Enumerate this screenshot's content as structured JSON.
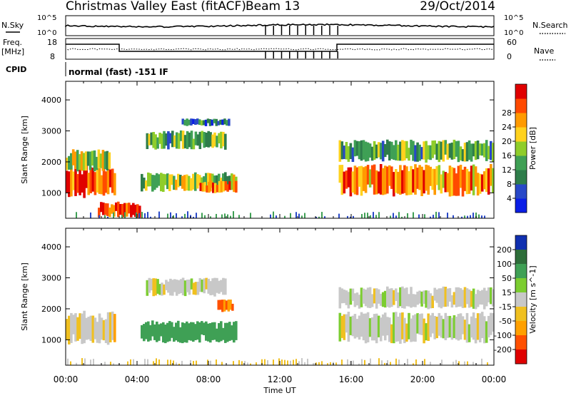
{
  "header": {
    "title": "Christmas Valley East (fitACF)",
    "beam": "Beam 13",
    "date": "29/Oct/2014"
  },
  "noise_panel": {
    "left_label": "N.Sky",
    "right_label": "N.Search",
    "tick_top": "10^5",
    "tick_bottom": "10^0",
    "right_tick_top": "10^5",
    "right_tick_bottom": "10^0"
  },
  "freq_panel": {
    "left_label_line1": "Freq.",
    "left_label_line2": "[MHz]",
    "right_label": "Nave",
    "left_ticks": [
      "18",
      "8"
    ],
    "right_ticks": [
      "60",
      "0"
    ]
  },
  "cpid": {
    "label": "CPID",
    "value": "normal (fast) -151 IF"
  },
  "chart_data": [
    {
      "type": "heatmap",
      "name": "power",
      "ylabel": "Slant Range [km]",
      "ylim": [
        180,
        4600
      ],
      "yticks": [
        "1000",
        "2000",
        "3000",
        "4000"
      ],
      "xlim_hours": [
        0,
        24
      ],
      "colorbar": {
        "label": "Power [dB]",
        "ticks": [
          "4",
          "8",
          "12",
          "16",
          "20",
          "24",
          "28"
        ],
        "colors": [
          "#0a1ee6",
          "#2848c8",
          "#2e7d4a",
          "#3fa055",
          "#8fcd2a",
          "#ffd21e",
          "#ff9a00",
          "#ff4a00",
          "#e00000"
        ]
      },
      "echo_regions": [
        {
          "t0": 0.0,
          "t1": 2.8,
          "r0": 850,
          "r1": 1900,
          "level": 7
        },
        {
          "t0": 0.0,
          "t1": 2.5,
          "r0": 1700,
          "r1": 2400,
          "level": 4
        },
        {
          "t0": 1.8,
          "t1": 4.2,
          "r0": 200,
          "r1": 700,
          "level": 8
        },
        {
          "t0": 4.2,
          "t1": 9.6,
          "r0": 1050,
          "r1": 1650,
          "level": 4
        },
        {
          "t0": 4.5,
          "t1": 9.0,
          "r0": 2400,
          "r1": 3000,
          "level": 3
        },
        {
          "t0": 6.5,
          "t1": 9.2,
          "r0": 3150,
          "r1": 3400,
          "level": 2
        },
        {
          "t0": 7.5,
          "t1": 9.6,
          "r0": 1000,
          "r1": 1400,
          "level": 6
        },
        {
          "t0": 15.3,
          "t1": 24.0,
          "r0": 900,
          "r1": 1900,
          "level": 6
        },
        {
          "t0": 15.3,
          "t1": 24.0,
          "r0": 2000,
          "r1": 2700,
          "level": 3
        }
      ]
    },
    {
      "type": "heatmap",
      "name": "velocity",
      "ylabel": "Slant Range [km]",
      "ylim": [
        180,
        4600
      ],
      "yticks": [
        "1000",
        "2000",
        "3000",
        "4000"
      ],
      "xlim_hours": [
        0,
        24
      ],
      "xticks": [
        "00:00",
        "04:00",
        "08:00",
        "12:00",
        "16:00",
        "20:00",
        "00:00"
      ],
      "xlabel": "Time UT",
      "colorbar": {
        "label": "Velocity [m s^-1]",
        "ticks": [
          "200",
          "100",
          "50",
          "15",
          "-15",
          "-50",
          "-100",
          "-200"
        ],
        "colors": [
          "#1030b0",
          "#2e6e3a",
          "#3fa055",
          "#7ccd30",
          "#c8c8c8",
          "#f0c020",
          "#ffa000",
          "#ff5000",
          "#e00000"
        ]
      },
      "echo_regions": [
        {
          "t0": 0.0,
          "t1": 2.8,
          "r0": 850,
          "r1": 1900,
          "vel": -15
        },
        {
          "t0": 4.2,
          "t1": 9.6,
          "r0": 900,
          "r1": 1600,
          "vel": 60
        },
        {
          "t0": 4.5,
          "t1": 9.0,
          "r0": 2400,
          "r1": 3000,
          "vel": 0
        },
        {
          "t0": 8.5,
          "t1": 9.4,
          "r0": 1900,
          "r1": 2300,
          "vel": -80
        },
        {
          "t0": 15.3,
          "t1": 24.0,
          "r0": 900,
          "r1": 1900,
          "vel": 0
        },
        {
          "t0": 15.3,
          "t1": 24.0,
          "r0": 2000,
          "r1": 2700,
          "vel": 0
        }
      ]
    }
  ]
}
